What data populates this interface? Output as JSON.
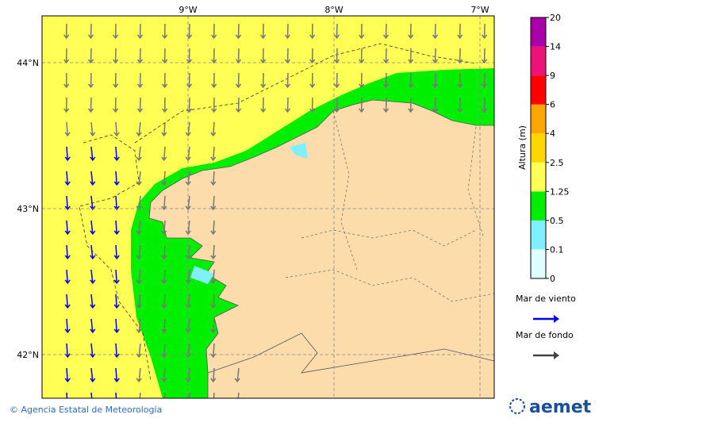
{
  "map": {
    "lon_labels": [
      "9°W",
      "8°W",
      "7°W"
    ],
    "lat_labels": [
      "44°N",
      "43°N",
      "42°N"
    ],
    "colorbar": {
      "title": "Altura (m)",
      "ticks": [
        0,
        0.1,
        0.5,
        1.25,
        2.5,
        4,
        6,
        9,
        14,
        20
      ],
      "colors": [
        "#e0ffff",
        "#80f0ff",
        "#00ee00",
        "#ffff55",
        "#ffd700",
        "#ffa500",
        "#ff0000",
        "#ee1177",
        "#aa00aa"
      ]
    },
    "legend": [
      {
        "label": "Mar de viento",
        "color": "#0000ee"
      },
      {
        "label": "Mar de fondo",
        "color": "#444444"
      }
    ],
    "footer": "© Agencia Estatal de Meteorología",
    "logo": "aemet"
  }
}
